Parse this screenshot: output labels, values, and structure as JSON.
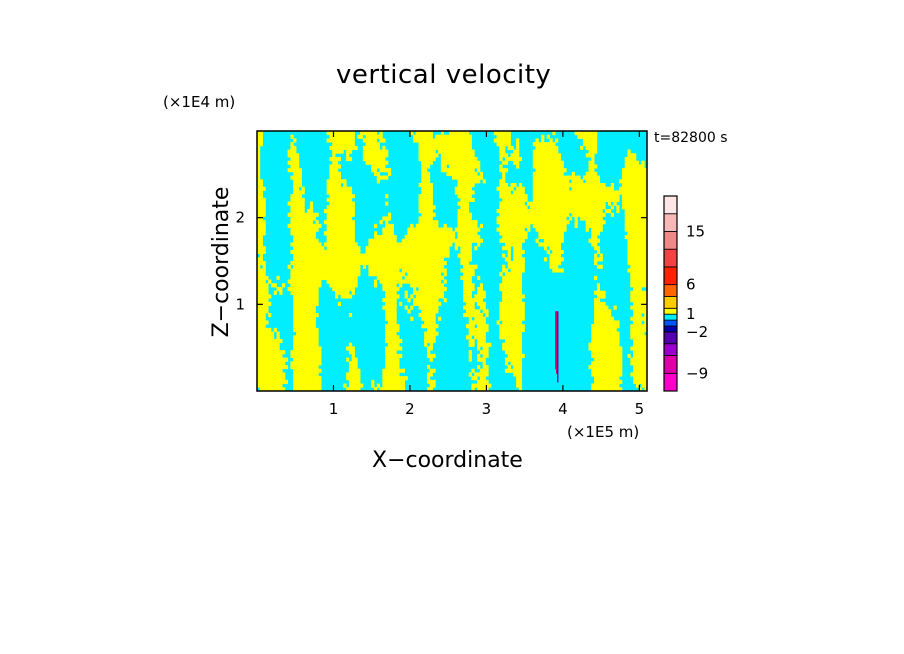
{
  "chart_data": {
    "type": "heatmap",
    "title": "vertical velocity",
    "xlabel": "X−coordinate",
    "ylabel": "Z−coordinate",
    "x_unit": "(×1E5 m)",
    "y_unit": "(×1E4 m)",
    "annotation": "t=82800 s",
    "xlim": [
      0,
      5.1
    ],
    "ylim": [
      0,
      3.0
    ],
    "x_ticks": [
      1,
      2,
      3,
      4,
      5
    ],
    "x_tick_labels": [
      "1",
      "2",
      "3",
      "4",
      "5"
    ],
    "y_ticks": [
      1,
      2
    ],
    "y_tick_labels": [
      "1",
      "2"
    ],
    "field_colors": {
      "negative": "#00eeff",
      "positive": "#ffff00"
    },
    "colorbar": {
      "levels": [
        -12,
        -9,
        -6,
        -4,
        -2,
        -1,
        0,
        1,
        2,
        4,
        6,
        9,
        12,
        15,
        18,
        21
      ],
      "colors": [
        "#ff00cc",
        "#dd00aa",
        "#9900cc",
        "#5500aa",
        "#0000aa",
        "#0055ff",
        "#00eeff",
        "#ffff00",
        "#ffcc00",
        "#ff6600",
        "#ff2200",
        "#ee4444",
        "#f08888",
        "#f8b8b8",
        "#ffe6e6"
      ],
      "tick_values": [
        15,
        6,
        1,
        -2,
        -9
      ],
      "tick_labels": [
        "15",
        "6",
        "1",
        "−2",
        "−9"
      ]
    }
  }
}
